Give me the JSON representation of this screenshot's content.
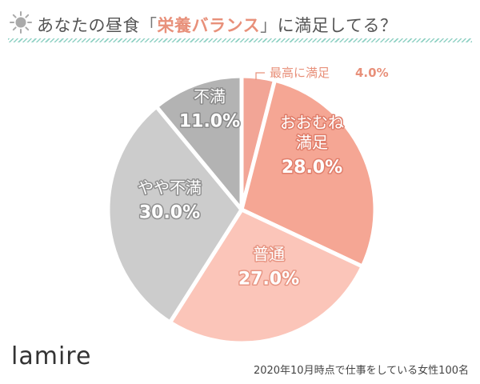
{
  "header": {
    "title_pre": "あなたの昼食",
    "bracket_open": "「",
    "title_highlight": "栄養バランス",
    "bracket_close": "」",
    "title_post": "に満足してる？",
    "icon": "sun-icon"
  },
  "chart_data": {
    "type": "pie",
    "unit": "%",
    "start_angle_deg": 0,
    "direction": "clockwise",
    "slices": [
      {
        "name": "最高に満足",
        "value": 4.0,
        "value_label": "4.0%",
        "color": "#f2a596",
        "label_color": "#e8907a",
        "outside": true
      },
      {
        "name": "おおむね\n満足",
        "value": 28.0,
        "value_label": "28.0%",
        "color": "#f5a694",
        "label_color": "#e07e6b"
      },
      {
        "name": "普通",
        "value": 27.0,
        "value_label": "27.0%",
        "color": "#fbc5b9",
        "label_color": "#e79583"
      },
      {
        "name": "やや不満",
        "value": 30.0,
        "value_label": "30.0%",
        "color": "#cccccc",
        "label_color": "#8f8f8f"
      },
      {
        "name": "不満",
        "value": 11.0,
        "value_label": "11.0%",
        "color": "#b3b3b3",
        "label_color": "#8a8a8a"
      }
    ]
  },
  "footer": {
    "logo": "lamire",
    "note": "2020年10月時点で仕事をしている女性100名"
  }
}
